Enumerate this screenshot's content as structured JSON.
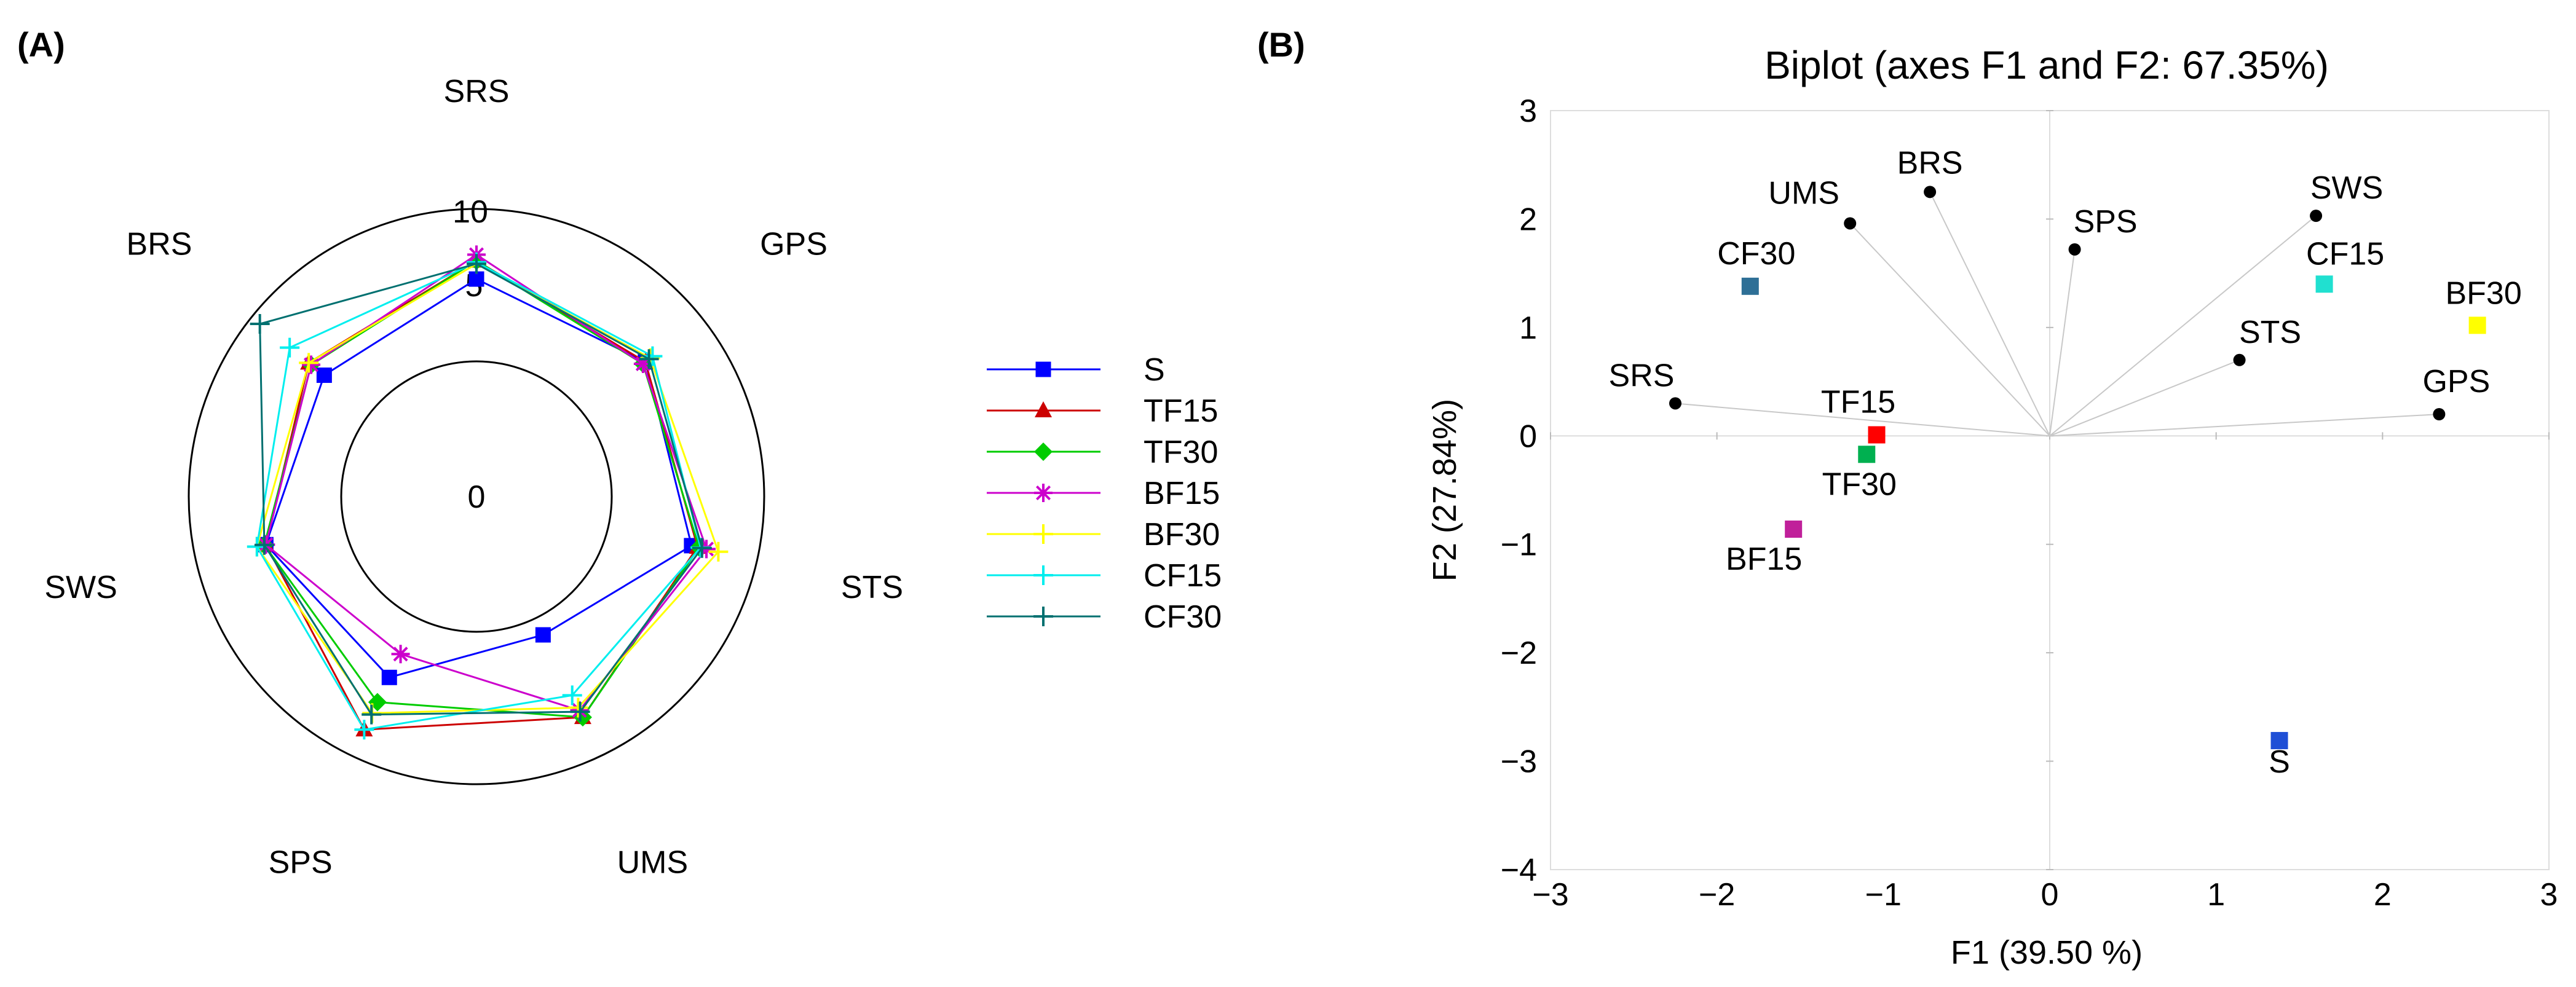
{
  "panel_a": {
    "label": "(A)"
  },
  "panel_b": {
    "label": "(B)"
  },
  "chart_data": [
    {
      "type": "radar",
      "axes": [
        "SRS",
        "GPS",
        "STS",
        "UMS",
        "SPS",
        "SWS",
        "BRS"
      ],
      "ring_labels": [
        "0",
        "5",
        "10"
      ],
      "rmax": 10,
      "series": [
        {
          "name": "S",
          "color": "#0000ff",
          "marker": "square",
          "values": [
            5.4,
            5.3,
            5.6,
            1.2,
            4.3,
            5.3,
            3.9
          ]
        },
        {
          "name": "TF15",
          "color": "#cc0000",
          "marker": "triangle",
          "values": [
            6.6,
            5.3,
            6.0,
            7.2,
            8.1,
            5.3,
            5.2
          ]
        },
        {
          "name": "TF30",
          "color": "#00cc00",
          "marker": "diamond",
          "values": [
            6.6,
            5.1,
            6.1,
            7.2,
            6.1,
            5.4,
            5.0
          ]
        },
        {
          "name": "BF15",
          "color": "#cc00cc",
          "marker": "star",
          "values": [
            7.0,
            5.1,
            6.6,
            6.7,
            2.6,
            5.3,
            5.0
          ]
        },
        {
          "name": "BF30",
          "color": "#ffff00",
          "marker": "plus",
          "values": [
            6.4,
            5.7,
            7.4,
            6.5,
            6.9,
            5.9,
            5.2
          ]
        },
        {
          "name": "CF15",
          "color": "#00eeee",
          "marker": "plus",
          "values": [
            6.5,
            5.9,
            6.2,
            5.6,
            8.1,
            5.9,
            6.8
          ]
        },
        {
          "name": "CF30",
          "color": "#007070",
          "marker": "plus",
          "values": [
            6.4,
            5.6,
            6.3,
            6.8,
            7.0,
            5.4,
            9.3
          ]
        }
      ]
    },
    {
      "type": "scatter",
      "title": "Biplot (axes F1 and F2: 67.35%)",
      "xlabel": "F1 (39.50 %)",
      "ylabel": "F2 (27.84%)",
      "xlim": [
        -3,
        3
      ],
      "ylim": [
        -4,
        3
      ],
      "xticks": [
        "−3",
        "−2",
        "−1",
        "0",
        "1",
        "2",
        "3"
      ],
      "yticks": [
        "−4",
        "−3",
        "−2",
        "−1",
        "0",
        "1",
        "2",
        "3"
      ],
      "variables": [
        {
          "name": "SRS",
          "x": -2.25,
          "y": 0.3,
          "anchor": "right-above"
        },
        {
          "name": "UMS",
          "x": -1.2,
          "y": 1.96,
          "anchor": "left-above"
        },
        {
          "name": "BRS",
          "x": -0.72,
          "y": 2.25,
          "anchor": "center-above"
        },
        {
          "name": "SPS",
          "x": 0.15,
          "y": 1.72,
          "anchor": "right-above"
        },
        {
          "name": "SWS",
          "x": 1.6,
          "y": 2.03,
          "anchor": "right-above"
        },
        {
          "name": "STS",
          "x": 1.14,
          "y": 0.7,
          "anchor": "right-above"
        },
        {
          "name": "GPS",
          "x": 2.34,
          "y": 0.2,
          "anchor": "right-above"
        }
      ],
      "observations": [
        {
          "name": "CF30",
          "x": -1.8,
          "y": 1.38,
          "color": "#2e6f96",
          "anchor": "center-above"
        },
        {
          "name": "CF15",
          "x": 1.65,
          "y": 1.4,
          "color": "#20e0d0",
          "anchor": "right-above"
        },
        {
          "name": "BF30",
          "x": 2.57,
          "y": 1.02,
          "color": "#ffff00",
          "anchor": "center-above"
        },
        {
          "name": "TF15",
          "x": -1.04,
          "y": 0.01,
          "color": "#ff0000",
          "anchor": "left-above"
        },
        {
          "name": "TF30",
          "x": -1.1,
          "y": -0.17,
          "color": "#00b050",
          "anchor": "left-below"
        },
        {
          "name": "BF15",
          "x": -1.54,
          "y": -0.86,
          "color": "#c0209a",
          "anchor": "left-below"
        },
        {
          "name": "S",
          "x": 1.38,
          "y": -2.81,
          "color": "#1f4fd6",
          "anchor": "center-below"
        }
      ]
    }
  ]
}
